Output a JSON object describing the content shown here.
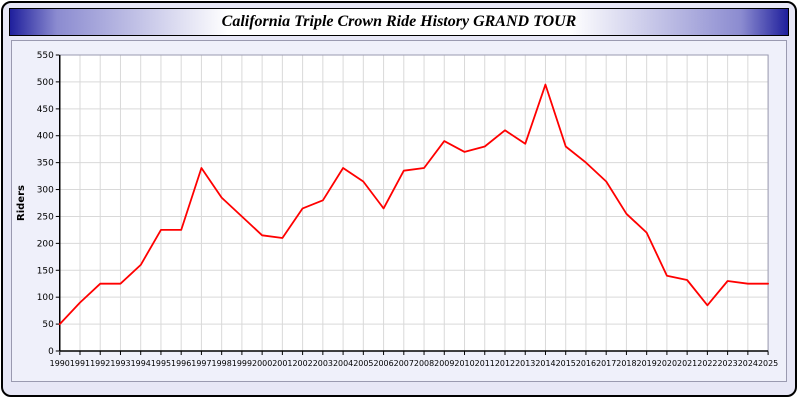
{
  "header": {
    "title": "California Triple Crown Ride History GRAND TOUR"
  },
  "theme": {
    "accent": "#1f1f9c",
    "panel_bg": "#eff0fa",
    "page_bg": "#e7e7f6",
    "plot_bg": "#ffffff",
    "grid_color": "#d9d9d9",
    "axis_color": "#000000",
    "line_color": "#ff0000"
  },
  "chart_data": {
    "type": "line",
    "title": "California Triple Crown Ride History GRAND TOUR",
    "xlabel": "",
    "ylabel": "Riders",
    "ylim": [
      0,
      550
    ],
    "ytick_step": 50,
    "grid": true,
    "legend_position": "none",
    "x": [
      1990,
      1991,
      1992,
      1993,
      1994,
      1995,
      1996,
      1997,
      1998,
      1999,
      2000,
      2001,
      2002,
      2003,
      2004,
      2005,
      2006,
      2007,
      2008,
      2009,
      2010,
      2011,
      2012,
      2013,
      2014,
      2015,
      2016,
      2017,
      2018,
      2019,
      2020,
      2021,
      2022,
      2023,
      2024,
      2025
    ],
    "series": [
      {
        "name": "Riders",
        "values": [
          50,
          90,
          125,
          125,
          160,
          225,
          225,
          340,
          285,
          250,
          215,
          210,
          265,
          280,
          340,
          315,
          265,
          335,
          340,
          390,
          370,
          380,
          410,
          385,
          495,
          380,
          350,
          315,
          255,
          220,
          140,
          132,
          85,
          130,
          125,
          125
        ]
      }
    ]
  }
}
